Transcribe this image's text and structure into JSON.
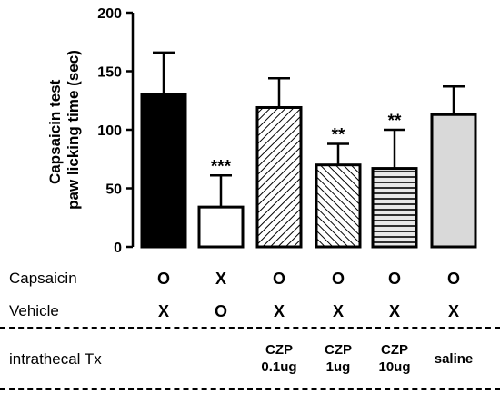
{
  "chart_data": {
    "type": "bar",
    "ylabel": "Capsaicin test\npaw licking time (sec)",
    "ylim": [
      0,
      200
    ],
    "yticks": [
      0,
      50,
      100,
      150,
      200
    ],
    "bars": [
      {
        "value": 130,
        "error": 36,
        "fill": "black",
        "sig": ""
      },
      {
        "value": 34,
        "error": 27,
        "fill": "white",
        "sig": "***"
      },
      {
        "value": 119,
        "error": 25,
        "fill": "hatch-right",
        "sig": ""
      },
      {
        "value": 70,
        "error": 18,
        "fill": "hatch-left",
        "sig": "**"
      },
      {
        "value": 67,
        "error": 33,
        "fill": "hatch-horizontal",
        "sig": "**"
      },
      {
        "value": 113,
        "error": 24,
        "fill": "lightgray",
        "sig": ""
      }
    ]
  },
  "conditions": {
    "capsaicin": {
      "label": "Capsaicin",
      "marks": [
        "O",
        "X",
        "O",
        "O",
        "O",
        "O"
      ]
    },
    "vehicle": {
      "label": "Vehicle",
      "marks": [
        "X",
        "O",
        "X",
        "X",
        "X",
        "X"
      ]
    },
    "treatment": {
      "label": "intrathecal Tx",
      "entries": [
        {
          "line1": "",
          "line2": ""
        },
        {
          "line1": "",
          "line2": ""
        },
        {
          "line1": "CZP",
          "line2": "0.1ug"
        },
        {
          "line1": "CZP",
          "line2": "1ug"
        },
        {
          "line1": "CZP",
          "line2": "10ug"
        },
        {
          "line1": "saline",
          "line2": ""
        }
      ]
    }
  }
}
